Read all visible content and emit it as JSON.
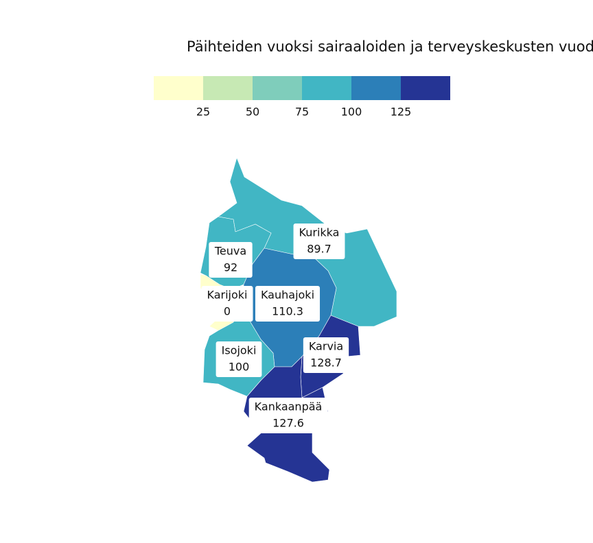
{
  "map": {
    "title": "Päihteiden vuoksi sairaaloiden ja terveyskeskusten vuode",
    "legend": {
      "ticks": [
        25,
        50,
        75,
        100,
        125
      ],
      "colors": [
        "#ffffcc",
        "#c7e9b4",
        "#7fcdbb",
        "#41b6c4",
        "#2c7fb8",
        "#253494"
      ]
    },
    "regions": [
      {
        "name": "Kurikka",
        "value": 89.7
      },
      {
        "name": "Teuva",
        "value": 92
      },
      {
        "name": "Karijoki",
        "value": 0
      },
      {
        "name": "Kauhajoki",
        "value": 110.3
      },
      {
        "name": "Isojoki",
        "value": 100
      },
      {
        "name": "Karvia",
        "value": 128.7
      },
      {
        "name": "Kankaanpää",
        "value": 127.6
      }
    ]
  }
}
